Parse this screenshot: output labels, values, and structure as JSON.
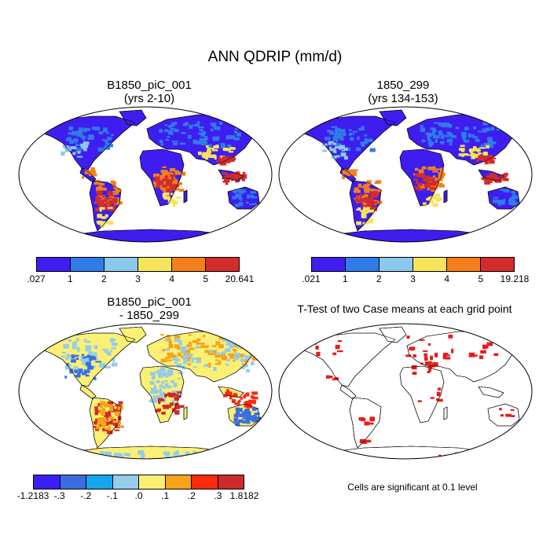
{
  "main_title": "ANN QDRIP (mm/d)",
  "panels": [
    {
      "id": "p1",
      "title1": "B1850_piC_001",
      "title2": "(yrs 2-10)"
    },
    {
      "id": "p2",
      "title1": "1850_299",
      "title2": "(yrs 134-153)"
    },
    {
      "id": "p3",
      "title1": "B1850_piC_001",
      "title2": "- 1850_299"
    },
    {
      "id": "p4",
      "title1": "T-Test of two Case means at each grid point",
      "title2": ""
    }
  ],
  "colorbars": [
    {
      "id": "cb1",
      "labels": [
        ".027",
        "1",
        "2",
        "3",
        "4",
        "5",
        "20.641"
      ],
      "colors": [
        "#3f1df0",
        "#2f7ce8",
        "#8cc8ee",
        "#f5e45c",
        "#f47f1c",
        "#d42b2b"
      ]
    },
    {
      "id": "cb2",
      "labels": [
        ".021",
        "1",
        "2",
        "3",
        "4",
        "5",
        "19.218"
      ],
      "colors": [
        "#3f1df0",
        "#2f7ce8",
        "#8cc8ee",
        "#f5e45c",
        "#f47f1c",
        "#d42b2b"
      ]
    },
    {
      "id": "cb3",
      "labels": [
        "-1.2183",
        "-.3",
        "-.2",
        "-.1",
        ".0",
        ".1",
        ".2",
        ".3",
        "1.8182"
      ],
      "colors": [
        "#3b1ff2",
        "#3a6ee0",
        "#16a4ec",
        "#93cde8",
        "#fbf073",
        "#f8a11a",
        "#fb2a0c",
        "#cc2a2a"
      ]
    }
  ],
  "significance_note": "Cells are significant at 0.1 level",
  "significance_color": "#e81b1b"
}
